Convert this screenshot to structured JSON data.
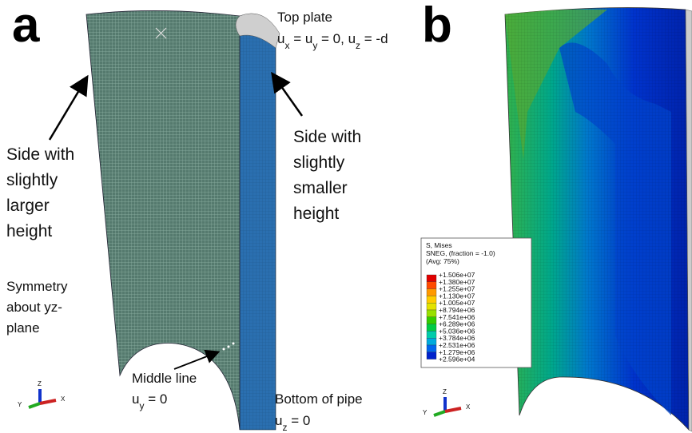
{
  "panel_a": {
    "label": "a",
    "top_plate": {
      "title": "Top plate",
      "condition": [
        "u",
        "x",
        " = u",
        "y",
        " = 0, u",
        "z",
        " = -d"
      ]
    },
    "left_side": [
      "Side with",
      "slightly",
      "larger",
      "height"
    ],
    "right_side": [
      "Side with",
      "slightly",
      "smaller",
      "height"
    ],
    "symmetry": [
      "Symmetry",
      "about yz-",
      "plane"
    ],
    "middle_line": {
      "title": "Middle line",
      "condition": [
        "u",
        "y",
        " = 0"
      ]
    },
    "bottom": {
      "title": "Bottom of pipe",
      "condition": [
        "u",
        "z",
        " = 0"
      ]
    },
    "axes": {
      "z": "Z",
      "y": "Y",
      "x": "X"
    }
  },
  "panel_b": {
    "label": "b",
    "legend": {
      "header": [
        "S, Mises",
        "SNEG, (fraction = -1.0)",
        "(Avg: 75%)"
      ],
      "levels": [
        "+1.506e+07",
        "+1.380e+07",
        "+1.255e+07",
        "+1.130e+07",
        "+1.005e+07",
        "+8.794e+06",
        "+7.541e+06",
        "+6.289e+06",
        "+5.036e+06",
        "+3.784e+06",
        "+2.531e+06",
        "+1.279e+06",
        "+2.596e+04"
      ],
      "colors": [
        "#e00000",
        "#ff4a00",
        "#ff9900",
        "#ffcc00",
        "#e3e300",
        "#99e000",
        "#33cc00",
        "#00cc44",
        "#00ccaa",
        "#00aadd",
        "#0066ee",
        "#0022cc"
      ]
    },
    "axes": {
      "z": "Z",
      "y": "Y",
      "x": "X"
    }
  }
}
